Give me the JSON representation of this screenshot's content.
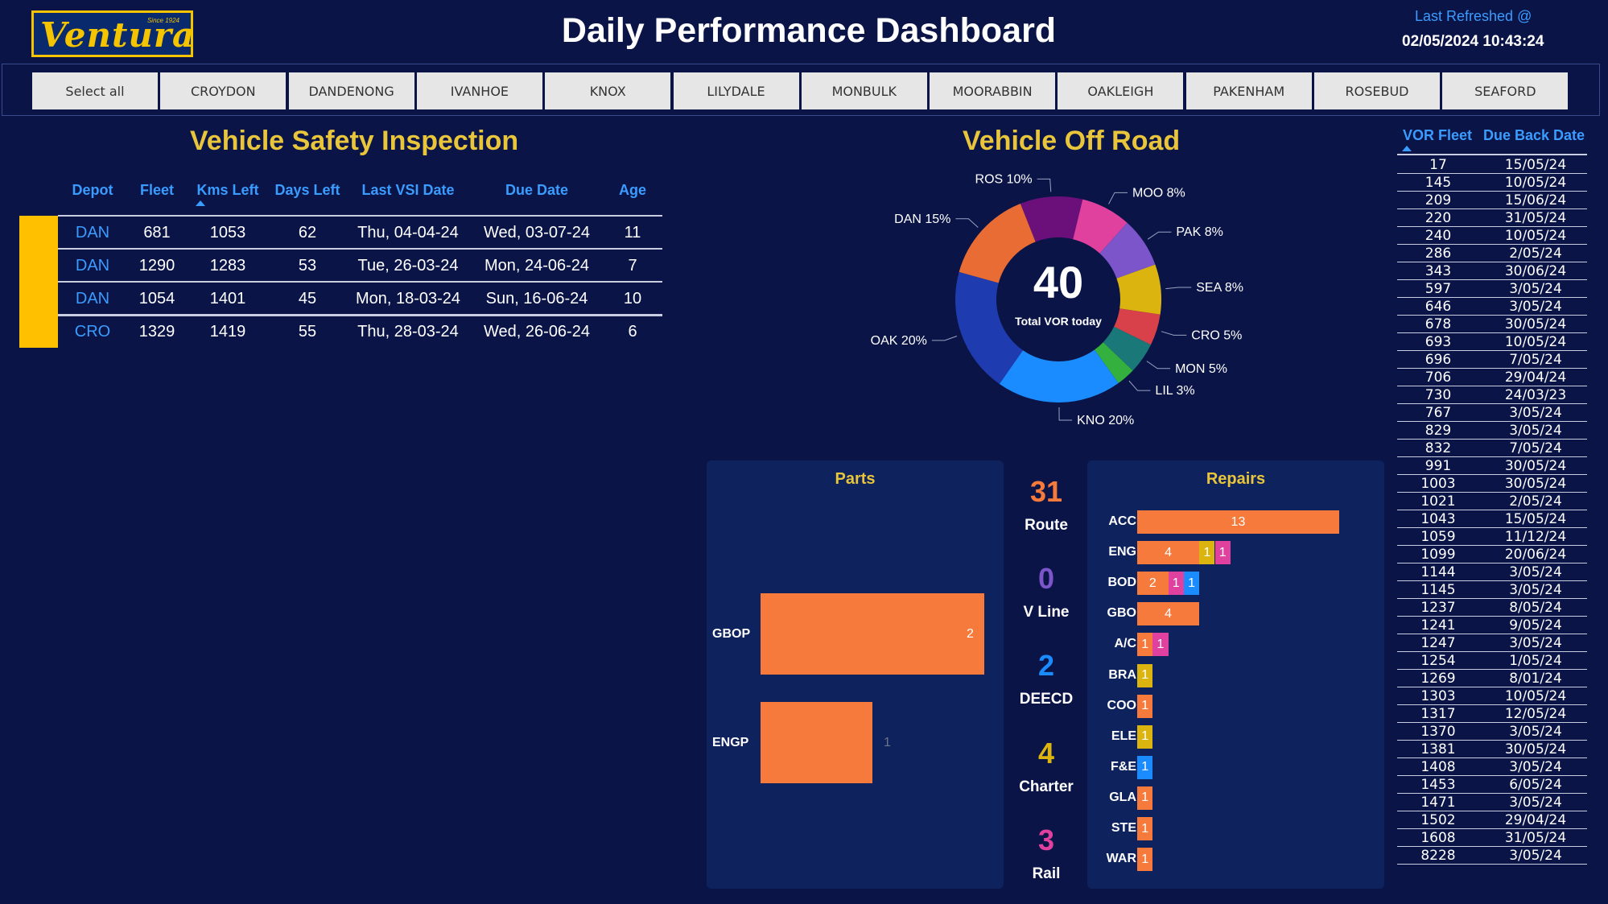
{
  "header": {
    "logo_text": "Ventura",
    "logo_since": "Since 1924",
    "title": "Daily Performance Dashboard",
    "refresh_label": "Last Refreshed @",
    "refresh_time": "02/05/2024 10:43:24"
  },
  "depots": [
    "Select all",
    "CROYDON",
    "DANDENONG",
    "IVANHOE",
    "KNOX",
    "LILYDALE",
    "MONBULK",
    "MOORABBIN",
    "OAKLEIGH",
    "PAKENHAM",
    "ROSEBUD",
    "SEAFORD"
  ],
  "vsi": {
    "title": "Vehicle Safety Inspection",
    "columns": [
      "Depot",
      "Fleet",
      "Kms Left",
      "Days Left",
      "Last VSI Date",
      "Due Date",
      "Age"
    ],
    "rows": [
      [
        "DAN",
        "681",
        "1053",
        "62",
        "Thu, 04-04-24",
        "Wed, 03-07-24",
        "11"
      ],
      [
        "DAN",
        "1290",
        "1283",
        "53",
        "Tue, 26-03-24",
        "Mon, 24-06-24",
        "7"
      ],
      [
        "DAN",
        "1054",
        "1401",
        "45",
        "Mon, 18-03-24",
        "Sun, 16-06-24",
        "10"
      ],
      [
        "CRO",
        "1329",
        "1419",
        "55",
        "Thu, 28-03-24",
        "Wed, 26-06-24",
        "6"
      ]
    ],
    "flag_color": "#ffc000"
  },
  "vor": {
    "title": "Vehicle Off Road",
    "total": "40",
    "total_label": "Total VOR today"
  },
  "chart_data": [
    {
      "type": "pie",
      "title": "Vehicle Off Road",
      "categories": [
        "ROS",
        "MOO",
        "PAK",
        "SEA",
        "CRO",
        "MON",
        "LIL",
        "KNO",
        "OAK",
        "DAN"
      ],
      "values": [
        10,
        8,
        8,
        8,
        5,
        5,
        3,
        20,
        20,
        15
      ],
      "labels": [
        "ROS 10%",
        "MOO 8%",
        "PAK 8%",
        "SEA 8%",
        "CRO 5%",
        "MON 5%",
        "LIL 3%",
        "KNO 20%",
        "OAK 20%",
        "DAN 15%"
      ],
      "colors": [
        "#6b0f7a",
        "#e0419f",
        "#7b55c9",
        "#dbb40f",
        "#d9414a",
        "#1a7878",
        "#33b03e",
        "#1a8cff",
        "#1f3bb0",
        "#e86c34"
      ]
    },
    {
      "type": "bar",
      "title": "Parts",
      "categories": [
        "GBOP",
        "ENGP"
      ],
      "values": [
        2,
        1
      ]
    },
    {
      "type": "bar",
      "title": "Repairs",
      "categories": [
        "ACC",
        "ENG",
        "BOD",
        "GBO",
        "A/C",
        "BRA",
        "COO",
        "ELE",
        "F&E",
        "GLA",
        "STE",
        "WAR"
      ],
      "stacks": [
        [
          [
            13,
            "#f57a3b"
          ]
        ],
        [
          [
            4,
            "#f57a3b"
          ],
          [
            1,
            "#dbb40f"
          ],
          [
            1,
            "#e0419f"
          ]
        ],
        [
          [
            2,
            "#f57a3b"
          ],
          [
            1,
            "#e0419f"
          ],
          [
            1,
            "#1a8cff"
          ]
        ],
        [
          [
            4,
            "#f57a3b"
          ]
        ],
        [
          [
            1,
            "#f57a3b"
          ],
          [
            1,
            "#e0419f"
          ]
        ],
        [
          [
            1,
            "#dbb40f"
          ]
        ],
        [
          [
            1,
            "#f57a3b"
          ]
        ],
        [
          [
            1,
            "#dbb40f"
          ]
        ],
        [
          [
            1,
            "#1a8cff"
          ]
        ],
        [
          [
            1,
            "#f57a3b"
          ]
        ],
        [
          [
            1,
            "#f57a3b"
          ]
        ],
        [
          [
            1,
            "#f57a3b"
          ]
        ]
      ]
    }
  ],
  "kpis": [
    {
      "value": "31",
      "label": "Route",
      "color": "#f57a3b"
    },
    {
      "value": "0",
      "label": "V Line",
      "color": "#7b55c9"
    },
    {
      "value": "2",
      "label": "DEECD",
      "color": "#1a8cff"
    },
    {
      "value": "4",
      "label": "Charter",
      "color": "#dbb40f"
    },
    {
      "value": "3",
      "label": "Rail",
      "color": "#e0419f"
    }
  ],
  "vor_list": {
    "col_fleet": "VOR Fleet",
    "col_due": "Due Back Date",
    "rows": [
      [
        "17",
        "15/05/24"
      ],
      [
        "145",
        "10/05/24"
      ],
      [
        "209",
        "15/06/24"
      ],
      [
        "220",
        "31/05/24"
      ],
      [
        "240",
        "10/05/24"
      ],
      [
        "286",
        "2/05/24"
      ],
      [
        "343",
        "30/06/24"
      ],
      [
        "597",
        "3/05/24"
      ],
      [
        "646",
        "3/05/24"
      ],
      [
        "678",
        "30/05/24"
      ],
      [
        "693",
        "10/05/24"
      ],
      [
        "696",
        "7/05/24"
      ],
      [
        "706",
        "29/04/24"
      ],
      [
        "730",
        "24/03/23"
      ],
      [
        "767",
        "3/05/24"
      ],
      [
        "829",
        "3/05/24"
      ],
      [
        "832",
        "7/05/24"
      ],
      [
        "991",
        "30/05/24"
      ],
      [
        "1003",
        "30/05/24"
      ],
      [
        "1021",
        "2/05/24"
      ],
      [
        "1043",
        "15/05/24"
      ],
      [
        "1059",
        "11/12/24"
      ],
      [
        "1099",
        "20/06/24"
      ],
      [
        "1144",
        "3/05/24"
      ],
      [
        "1145",
        "3/05/24"
      ],
      [
        "1237",
        "8/05/24"
      ],
      [
        "1241",
        "9/05/24"
      ],
      [
        "1247",
        "3/05/24"
      ],
      [
        "1254",
        "1/05/24"
      ],
      [
        "1269",
        "8/01/24"
      ],
      [
        "1303",
        "10/05/24"
      ],
      [
        "1317",
        "12/05/24"
      ],
      [
        "1370",
        "3/05/24"
      ],
      [
        "1381",
        "30/05/24"
      ],
      [
        "1408",
        "3/05/24"
      ],
      [
        "1453",
        "6/05/24"
      ],
      [
        "1471",
        "3/05/24"
      ],
      [
        "1502",
        "29/04/24"
      ],
      [
        "1608",
        "31/05/24"
      ],
      [
        "8228",
        "3/05/24"
      ]
    ]
  }
}
